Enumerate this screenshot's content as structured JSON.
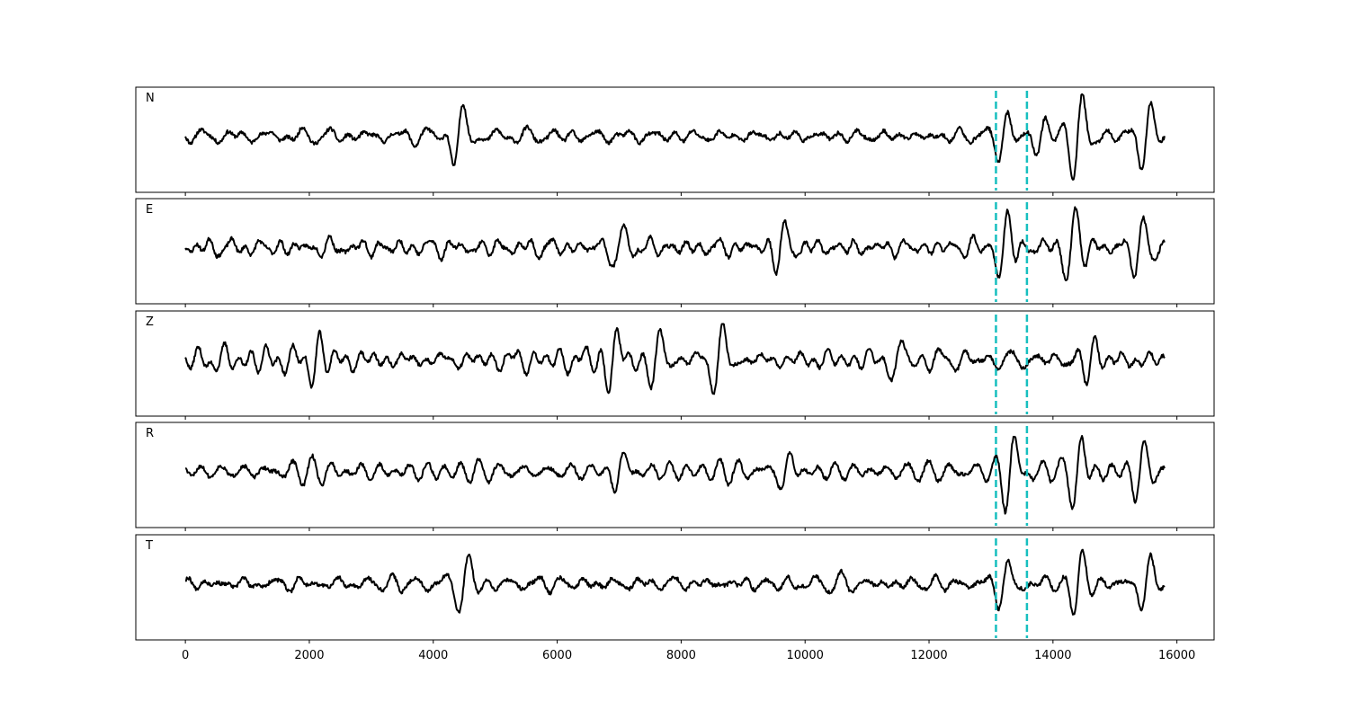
{
  "chart_data": {
    "type": "line",
    "title": "",
    "xlabel": "",
    "ylabel": "",
    "xlim": [
      -800,
      16600
    ],
    "x_ticks": [
      0,
      2000,
      4000,
      6000,
      8000,
      10000,
      12000,
      14000,
      16000
    ],
    "x_tick_labels": [
      "0",
      "2000",
      "4000",
      "6000",
      "8000",
      "10000",
      "12000",
      "14000",
      "16000"
    ],
    "x_range": [
      0,
      15800
    ],
    "grid": false,
    "vertical_markers": {
      "x": [
        13080,
        13580
      ],
      "style": "dashed",
      "color": "#17bfbf"
    },
    "series": [
      {
        "name": "N",
        "seed": 11,
        "amplitude": 0.22,
        "bursts": [
          {
            "x": 4400,
            "amp": 0.9
          },
          {
            "x": 13200,
            "amp": 0.6
          },
          {
            "x": 13800,
            "amp": 0.55
          },
          {
            "x": 14400,
            "amp": 0.95
          },
          {
            "x": 15500,
            "amp": 0.85
          }
        ]
      },
      {
        "name": "E",
        "seed": 23,
        "amplitude": 0.3,
        "bursts": [
          {
            "x": 7000,
            "amp": 0.55
          },
          {
            "x": 9600,
            "amp": 0.55
          },
          {
            "x": 13200,
            "amp": 0.85
          },
          {
            "x": 14300,
            "amp": 0.95
          },
          {
            "x": 15400,
            "amp": 0.6
          }
        ]
      },
      {
        "name": "Z",
        "seed": 37,
        "amplitude": 0.42,
        "bursts": [
          {
            "x": 2100,
            "amp": 0.55
          },
          {
            "x": 6900,
            "amp": 0.85
          },
          {
            "x": 7600,
            "amp": 0.95
          },
          {
            "x": 8600,
            "amp": 0.8
          },
          {
            "x": 11500,
            "amp": 0.6
          },
          {
            "x": 14600,
            "amp": 0.65
          }
        ]
      },
      {
        "name": "R",
        "seed": 51,
        "amplitude": 0.28,
        "bursts": [
          {
            "x": 7000,
            "amp": 0.6
          },
          {
            "x": 9700,
            "amp": 0.55
          },
          {
            "x": 13300,
            "amp": 0.95
          },
          {
            "x": 14400,
            "amp": 0.95
          },
          {
            "x": 15400,
            "amp": 0.65
          }
        ]
      },
      {
        "name": "T",
        "seed": 67,
        "amplitude": 0.22,
        "bursts": [
          {
            "x": 4500,
            "amp": 0.65
          },
          {
            "x": 13200,
            "amp": 0.45
          },
          {
            "x": 14400,
            "amp": 0.95
          },
          {
            "x": 15500,
            "amp": 0.85
          }
        ]
      }
    ]
  }
}
